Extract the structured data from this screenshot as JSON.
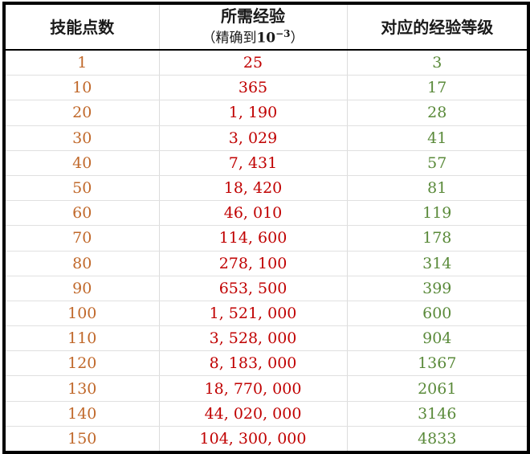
{
  "table": {
    "headers": {
      "points": "技能点数",
      "exp_line1": "所需经验",
      "exp_line2_prefix": "（精确到",
      "exp_line2_base": "10",
      "exp_line2_exp": "−3",
      "exp_line2_suffix": "）",
      "level": "对应的经验等级"
    },
    "rows": [
      {
        "points": "1",
        "exp": "25",
        "level": "3"
      },
      {
        "points": "10",
        "exp": "365",
        "level": "17"
      },
      {
        "points": "20",
        "exp": "1, 190",
        "level": "28"
      },
      {
        "points": "30",
        "exp": "3, 029",
        "level": "41"
      },
      {
        "points": "40",
        "exp": "7, 431",
        "level": "57"
      },
      {
        "points": "50",
        "exp": "18, 420",
        "level": "81"
      },
      {
        "points": "60",
        "exp": "46, 010",
        "level": "119"
      },
      {
        "points": "70",
        "exp": "114, 600",
        "level": "178"
      },
      {
        "points": "80",
        "exp": "278, 100",
        "level": "314"
      },
      {
        "points": "90",
        "exp": "653, 500",
        "level": "399"
      },
      {
        "points": "100",
        "exp": "1, 521, 000",
        "level": "600"
      },
      {
        "points": "110",
        "exp": "3, 528, 000",
        "level": "904"
      },
      {
        "points": "120",
        "exp": "8, 183, 000",
        "level": "1367"
      },
      {
        "points": "130",
        "exp": "18, 770, 000",
        "level": "2061"
      },
      {
        "points": "140",
        "exp": "44, 020, 000",
        "level": "3146"
      },
      {
        "points": "150",
        "exp": "104, 300, 000",
        "level": "4833"
      }
    ],
    "colors": {
      "points": "#c0682a",
      "exp": "#c00000",
      "level": "#5a8a3a"
    }
  }
}
